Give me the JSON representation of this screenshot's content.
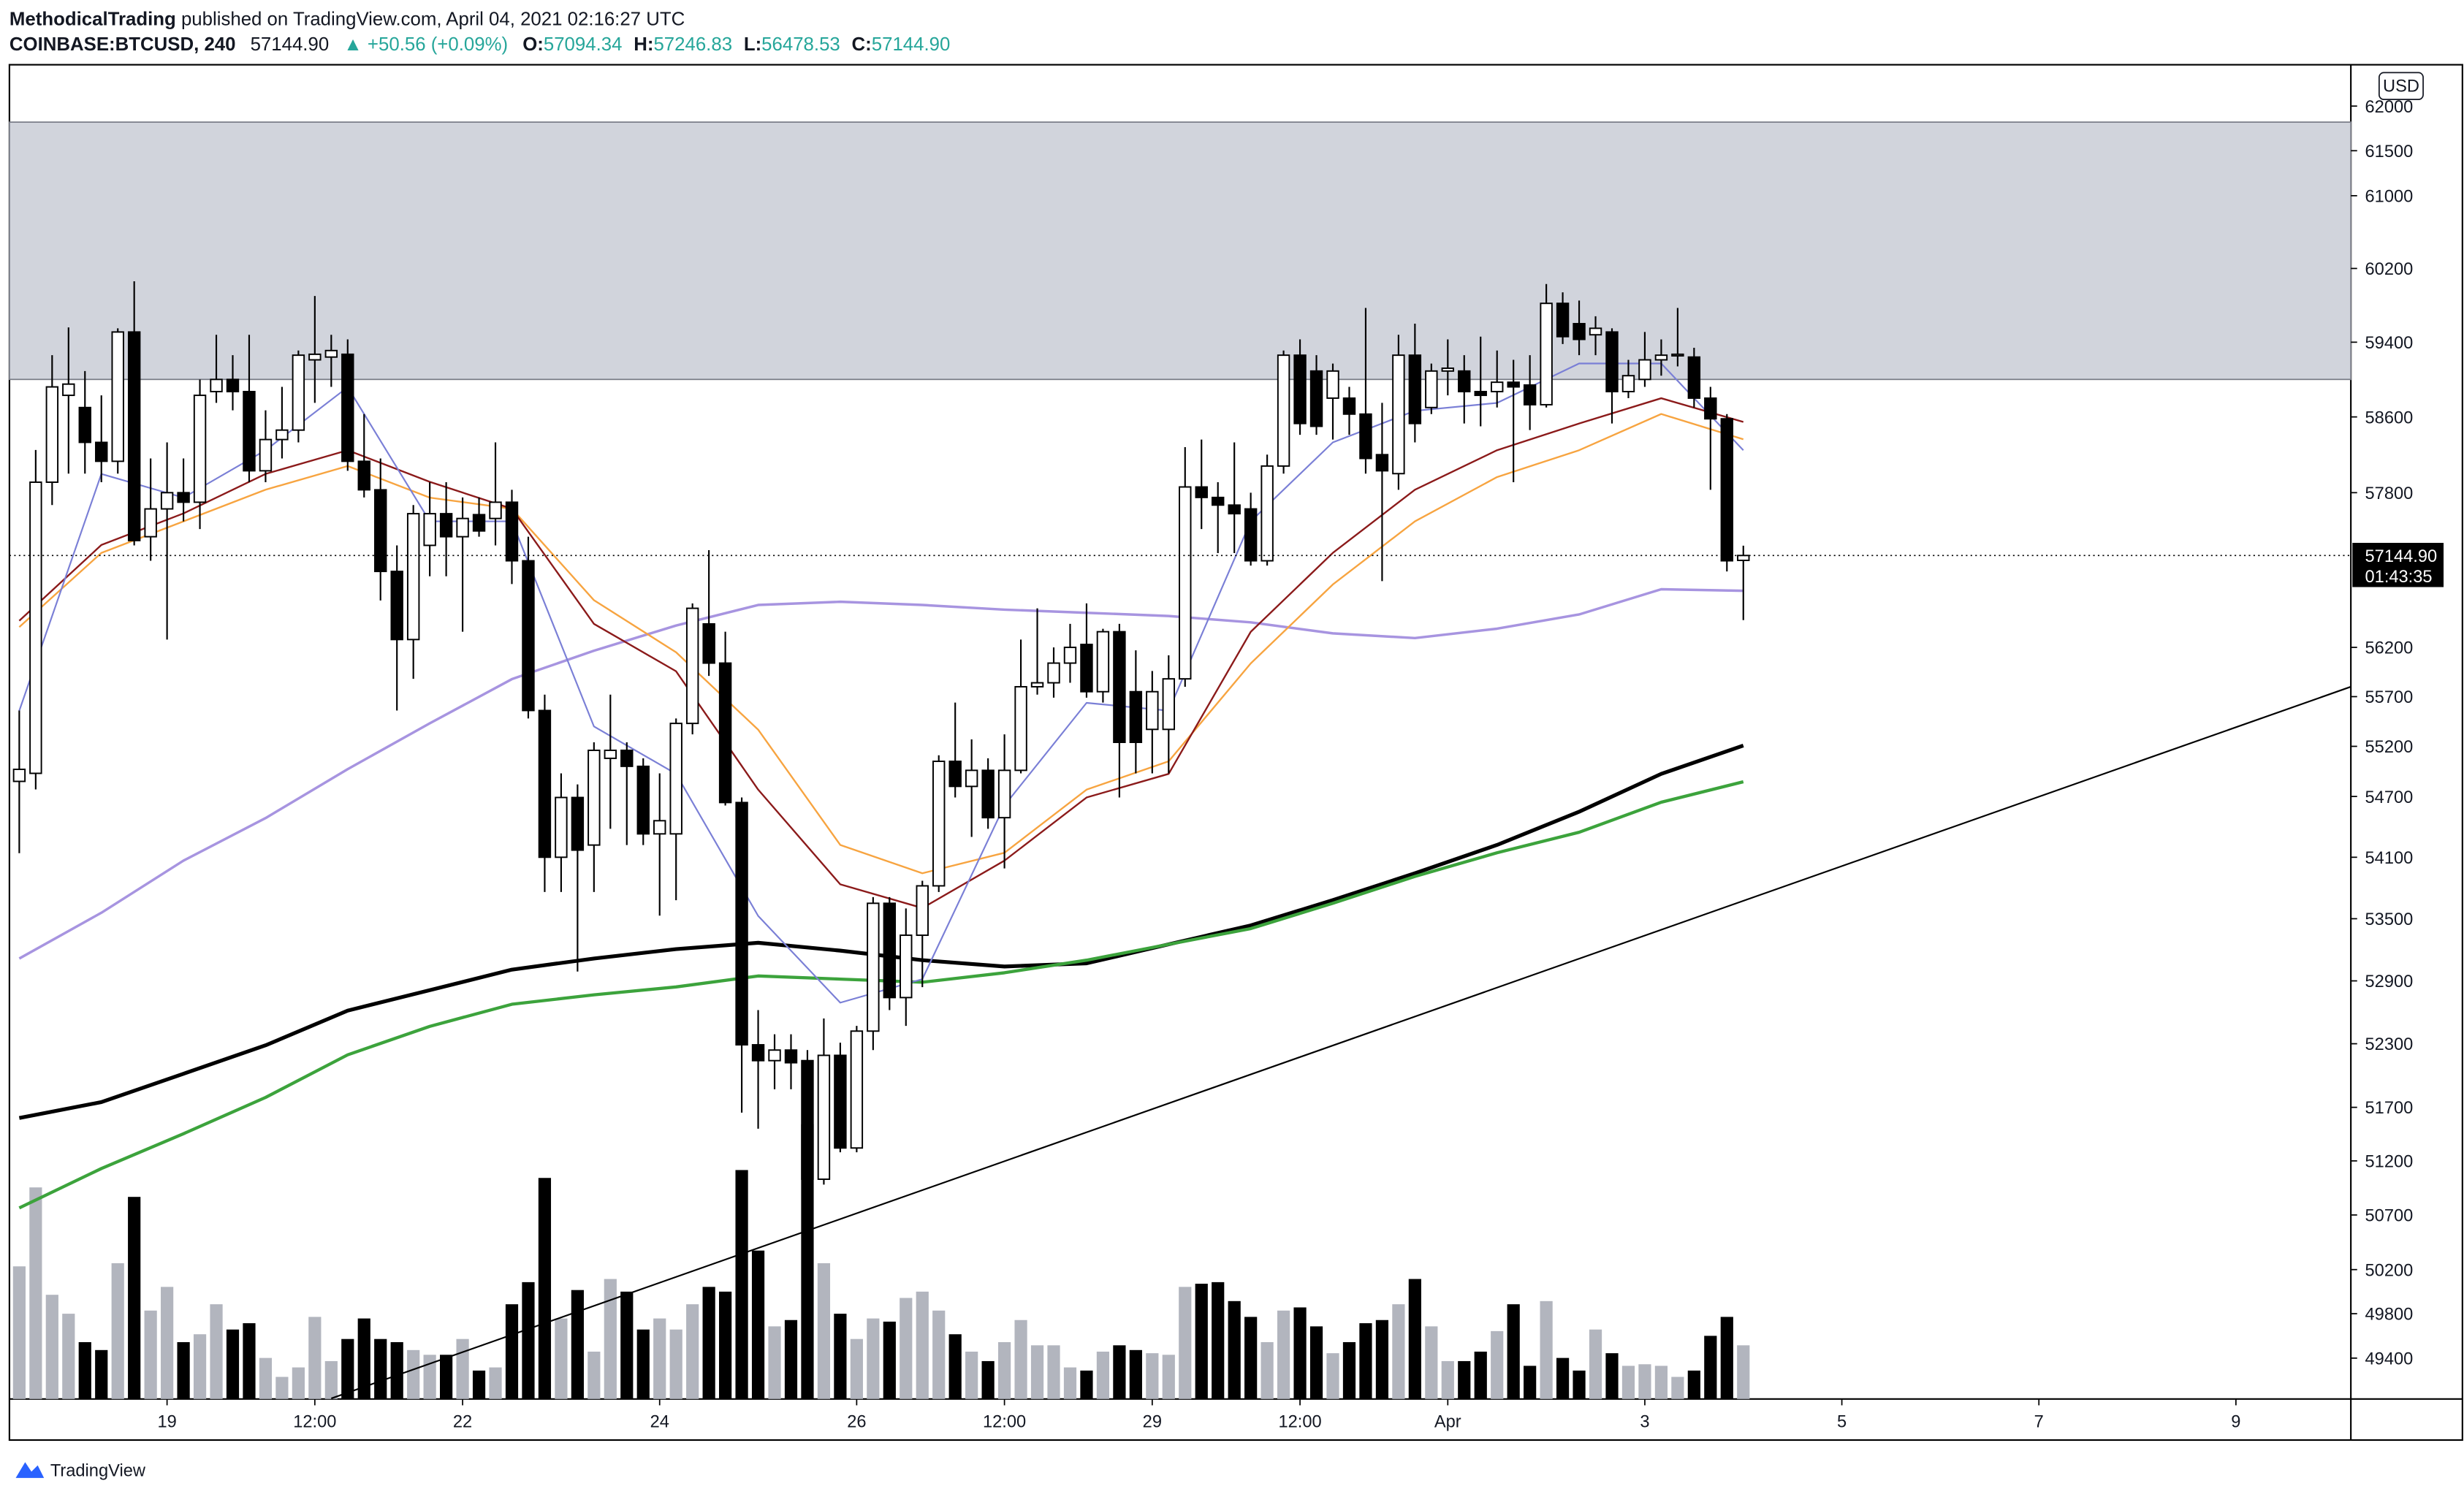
{
  "header": {
    "publisher": "MethodicalTrading",
    "published": "published on TradingView.com, April 04, 2021 02:16:27 UTC",
    "symbol": "COINBASE:BTCUSD, 240",
    "last": "57144.90",
    "change": "▲ +50.56 (+0.09%)",
    "o_label": "O:",
    "open": "57094.34",
    "h_label": "H:",
    "high": "57246.83",
    "l_label": "L:",
    "low": "56478.53",
    "c_label": "C:",
    "close": "57144.90"
  },
  "chart_data": {
    "type": "candlestick",
    "currency": "USD",
    "up_color": "#ffffff",
    "down_color": "#000000",
    "x": [
      0,
      1,
      2,
      3,
      4,
      5,
      6,
      7,
      8,
      9,
      10,
      11,
      12,
      13,
      14,
      15,
      16,
      17,
      18,
      19,
      20,
      21,
      22,
      23,
      24,
      25,
      26,
      27,
      28,
      29,
      30,
      31,
      32,
      33,
      34,
      35,
      36,
      37,
      38,
      39,
      40,
      41,
      42,
      43,
      44,
      45,
      46,
      47,
      48,
      49,
      50,
      51,
      52,
      53,
      54,
      55,
      56,
      57,
      58,
      59,
      60,
      61,
      62,
      63,
      64,
      65,
      66,
      67,
      68,
      69,
      70,
      71,
      72,
      73,
      74,
      75,
      76,
      77,
      78,
      79,
      80,
      81,
      82,
      83,
      84,
      85,
      86,
      87,
      88,
      89,
      90,
      91,
      92,
      93,
      94,
      95,
      96,
      97,
      98,
      99,
      100,
      101,
      102,
      103,
      104,
      105
    ],
    "open": [
      54850,
      54930,
      57910,
      58830,
      58700,
      58330,
      58130,
      59510,
      57340,
      57630,
      57800,
      57700,
      58870,
      59000,
      58870,
      58030,
      58360,
      58460,
      59210,
      59240,
      59270,
      58130,
      57830,
      56980,
      56280,
      57250,
      57580,
      57340,
      57570,
      57530,
      57700,
      57090,
      55560,
      54100,
      54690,
      54220,
      55080,
      55160,
      55000,
      54330,
      54330,
      55430,
      56440,
      56040,
      54640,
      52290,
      52140,
      52240,
      52140,
      51030,
      52190,
      51320,
      52420,
      53650,
      52740,
      53340,
      53820,
      55050,
      54800,
      54960,
      54490,
      54960,
      55800,
      55840,
      56040,
      56230,
      55750,
      56360,
      55750,
      55370,
      55370,
      55880,
      57860,
      57750,
      57670,
      57630,
      57090,
      58080,
      59260,
      59090,
      58800,
      58800,
      58630,
      58200,
      58000,
      59260,
      58700,
      59090,
      59090,
      58870,
      58870,
      58970,
      58940,
      58730,
      59820,
      59600,
      59480,
      59510,
      58870,
      59000,
      59210,
      59260,
      59240,
      58800,
      58580,
      57094.34
    ],
    "high": [
      55560,
      58250,
      59260,
      59560,
      59090,
      58830,
      59550,
      60060,
      58160,
      58330,
      58160,
      59000,
      59480,
      59260,
      59480,
      58670,
      58920,
      59310,
      59900,
      59480,
      59430,
      58630,
      58160,
      57250,
      57670,
      57910,
      57910,
      57750,
      57750,
      58330,
      57830,
      57340,
      55720,
      54930,
      54820,
      55240,
      55720,
      55240,
      55080,
      54930,
      55480,
      56650,
      57200,
      56360,
      54690,
      52620,
      52390,
      52390,
      52240,
      52540,
      52310,
      52470,
      53710,
      53710,
      53600,
      53870,
      55110,
      55640,
      55270,
      55080,
      55320,
      56280,
      56600,
      56200,
      56440,
      56650,
      56390,
      56440,
      56170,
      55960,
      56120,
      58280,
      58360,
      57910,
      58330,
      57800,
      58200,
      59310,
      59430,
      59260,
      59170,
      58920,
      59770,
      58750,
      59480,
      59600,
      59170,
      59430,
      59260,
      59460,
      59310,
      59210,
      59260,
      60030,
      59940,
      59850,
      59680,
      59550,
      59210,
      59510,
      59430,
      59770,
      59340,
      58920,
      58630,
      57246.83
    ],
    "low": [
      54140,
      54770,
      57670,
      58000,
      58000,
      57910,
      58000,
      57250,
      57090,
      56280,
      57500,
      57420,
      58750,
      58670,
      57910,
      57910,
      58160,
      58330,
      58750,
      58920,
      58030,
      57750,
      56680,
      55560,
      55880,
      56930,
      56930,
      56360,
      57340,
      57250,
      56850,
      55480,
      53760,
      53760,
      52990,
      53760,
      54380,
      54220,
      54220,
      53530,
      53680,
      55320,
      55910,
      54610,
      51650,
      51500,
      51870,
      51870,
      50550,
      50980,
      51280,
      51280,
      52240,
      52620,
      52470,
      52840,
      53760,
      54690,
      54300,
      54380,
      53990,
      54930,
      55720,
      55690,
      55840,
      55690,
      55640,
      54690,
      54930,
      54930,
      54930,
      55800,
      57420,
      57170,
      57170,
      57040,
      57040,
      58000,
      58410,
      58410,
      58360,
      58410,
      58000,
      56880,
      57830,
      58330,
      58630,
      58830,
      58530,
      58500,
      58700,
      57910,
      58460,
      58700,
      59380,
      59260,
      59260,
      58530,
      58800,
      58920,
      59040,
      59140,
      58700,
      57830,
      56980,
      56478.53
    ],
    "close": [
      54970,
      57910,
      58920,
      58950,
      58330,
      58130,
      59510,
      57300,
      57630,
      57800,
      57700,
      58830,
      59000,
      58870,
      58030,
      58360,
      58460,
      59260,
      59270,
      59310,
      58130,
      57830,
      56980,
      56280,
      57580,
      57580,
      57340,
      57530,
      57400,
      57700,
      57090,
      55560,
      54100,
      54690,
      54170,
      55160,
      55160,
      55000,
      54330,
      54460,
      55430,
      56600,
      56040,
      54640,
      52290,
      52140,
      52240,
      52120,
      51030,
      52190,
      51320,
      52420,
      53650,
      52740,
      53340,
      53820,
      55050,
      54800,
      54960,
      54490,
      54960,
      55800,
      55840,
      56040,
      56200,
      55750,
      56360,
      55240,
      55240,
      55750,
      55880,
      57860,
      57750,
      57670,
      57580,
      57090,
      58080,
      59260,
      58530,
      58500,
      59090,
      58630,
      58160,
      58030,
      59260,
      58530,
      59090,
      59120,
      58870,
      58830,
      58970,
      58920,
      58730,
      59820,
      59460,
      59430,
      59550,
      58870,
      59040,
      59210,
      59260,
      59270,
      58800,
      58580,
      57090,
      57144.9
    ],
    "volume": {
      "up_color": "#b2b5be",
      "down_color": "#000000",
      "ylim": [
        0,
        845
      ],
      "values": [
        84,
        134,
        66,
        54,
        36,
        31,
        86,
        128,
        56,
        71,
        36,
        41,
        60,
        44,
        48,
        26,
        14,
        20,
        52,
        24,
        38,
        51,
        38,
        36,
        31,
        28,
        28,
        38,
        18,
        20,
        60,
        74,
        140,
        51,
        69,
        30,
        76,
        68,
        44,
        51,
        44,
        60,
        71,
        68,
        145,
        94,
        46,
        50,
        174,
        86,
        54,
        38,
        51,
        49,
        64,
        68,
        56,
        41,
        30,
        24,
        36,
        50,
        34,
        34,
        20,
        18,
        30,
        34,
        31,
        29,
        28,
        71,
        73,
        74,
        62,
        52,
        36,
        56,
        58,
        46,
        29,
        36,
        48,
        50,
        60,
        76,
        46,
        24,
        24,
        30,
        43,
        60,
        21,
        62,
        26,
        18,
        44,
        29,
        21,
        22,
        21,
        14,
        18,
        40,
        52,
        34
      ]
    },
    "lines": [
      {
        "color": "#a794e0",
        "width": 1.6,
        "x": [
          0,
          5,
          10,
          15,
          20,
          25,
          30,
          35,
          40,
          45,
          50,
          55,
          60,
          65,
          70,
          75,
          80,
          85,
          90,
          95,
          100,
          105
        ],
        "values": [
          53115,
          53558,
          54067,
          54486,
          54972,
          55431,
          55877,
          56166,
          56423,
          56634,
          56667,
          56634,
          56586,
          56554,
          56521,
          56456,
          56343,
          56295,
          56391,
          56537,
          56796,
          56780
        ]
      },
      {
        "color": "#000000",
        "width": 2.4,
        "x": [
          0,
          5,
          10,
          15,
          20,
          25,
          30,
          35,
          40,
          45,
          50,
          55,
          60,
          65,
          70,
          75,
          80,
          85,
          90,
          95,
          100,
          105
        ],
        "values": [
          51600,
          51749,
          52016,
          52285,
          52615,
          52811,
          53008,
          53115,
          53206,
          53267,
          53191,
          53099,
          53038,
          53069,
          53252,
          53435,
          53681,
          53943,
          54221,
          54549,
          54925,
          55208
        ]
      },
      {
        "color": "#3ca33c",
        "width": 2,
        "x": [
          0,
          5,
          10,
          15,
          20,
          25,
          30,
          35,
          40,
          45,
          50,
          55,
          60,
          65,
          70,
          75,
          80,
          85,
          90,
          95,
          100,
          105
        ],
        "values": [
          50765,
          51129,
          51453,
          51793,
          52195,
          52465,
          52676,
          52766,
          52842,
          52947,
          52917,
          52887,
          52978,
          53099,
          53252,
          53404,
          53650,
          53912,
          54144,
          54346,
          54643,
          54846
        ]
      },
      {
        "color": "#f7a440",
        "width": 1.1,
        "x": [
          0,
          5,
          10,
          15,
          20,
          25,
          30,
          35,
          40,
          45,
          50,
          55,
          60,
          65,
          70,
          75,
          80,
          85,
          90,
          95,
          100,
          105
        ],
        "values": [
          56408,
          57172,
          57500,
          57831,
          58080,
          57748,
          57632,
          56683,
          56150,
          55367,
          54221,
          53943,
          54144,
          54768,
          55050,
          56037,
          56845,
          57500,
          57964,
          58247,
          58631,
          58363
        ]
      },
      {
        "color": "#8b1a1a",
        "width": 1.1,
        "x": [
          0,
          5,
          10,
          15,
          20,
          25,
          30,
          35,
          40,
          45,
          50,
          55,
          60,
          65,
          70,
          75,
          80,
          85,
          90,
          95,
          100,
          105
        ],
        "values": [
          56472,
          57254,
          57583,
          57997,
          58247,
          57914,
          57632,
          56440,
          55957,
          54768,
          53835,
          53604,
          54067,
          54690,
          54925,
          56359,
          57172,
          57831,
          58247,
          58530,
          58799,
          58547
        ]
      },
      {
        "color": "#7a7fd6",
        "width": 1,
        "x": [
          0,
          5,
          10,
          15,
          20,
          25,
          30,
          35,
          40,
          45,
          50,
          55,
          60,
          65,
          70,
          75,
          80,
          85,
          90,
          95,
          100,
          105
        ],
        "values": [
          55558,
          57997,
          57748,
          58247,
          58917,
          57500,
          57500,
          55399,
          54925,
          53527,
          52691,
          52917,
          54611,
          55637,
          55558,
          57500,
          58330,
          58665,
          58749,
          59171,
          59171,
          58247
        ]
      }
    ],
    "zones": [
      {
        "low": 59000,
        "high": 61820,
        "color": "#d1d4dc"
      }
    ],
    "trendline": {
      "color": "#000000",
      "x": [
        19,
        142
      ],
      "values": [
        49040,
        55800
      ]
    },
    "last_price": {
      "value": 57144.9,
      "label": "57144.90",
      "countdown": "01:43:35"
    },
    "log": true,
    "grid": false,
    "ylim": [
      49035,
      62467
    ],
    "yticks": [
      62000,
      61500,
      61000,
      60200,
      59400,
      58600,
      57800,
      56200,
      55700,
      55200,
      54700,
      54100,
      53500,
      52900,
      52300,
      51700,
      51200,
      50700,
      50200,
      49800,
      49400
    ],
    "xlim": [
      -0.6,
      142
    ],
    "xticks": [
      {
        "value": 9,
        "label": "19"
      },
      {
        "value": 18,
        "label": "12:00"
      },
      {
        "value": 27,
        "label": "22"
      },
      {
        "value": 39,
        "label": "24"
      },
      {
        "value": 51,
        "label": "26"
      },
      {
        "value": 60,
        "label": "12:00"
      },
      {
        "value": 69,
        "label": "29"
      },
      {
        "value": 78,
        "label": "12:00"
      },
      {
        "value": 87,
        "label": "Apr"
      },
      {
        "value": 99,
        "label": "3"
      },
      {
        "value": 111,
        "label": "5"
      },
      {
        "value": 123,
        "label": "7"
      },
      {
        "value": 135,
        "label": "9"
      }
    ]
  },
  "footer": {
    "brand": "TradingView"
  }
}
